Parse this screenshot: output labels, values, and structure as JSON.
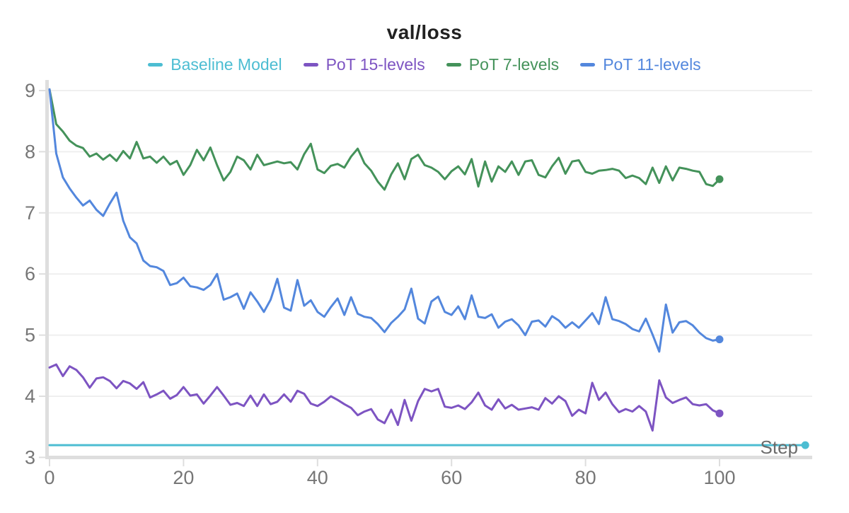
{
  "title": "val/loss",
  "legend": [
    {
      "label": "Baseline Model",
      "color": "#4cbdd2"
    },
    {
      "label": "PoT 15-levels",
      "color": "#7d54c2"
    },
    {
      "label": "PoT 7-levels",
      "color": "#44925a"
    },
    {
      "label": "PoT 11-levels",
      "color": "#5387dd"
    }
  ],
  "x_axis": {
    "label": "Step",
    "tick_labels": [
      "0",
      "20",
      "40",
      "60",
      "80",
      "100"
    ],
    "ticks": [
      0,
      20,
      40,
      60,
      80,
      100
    ]
  },
  "y_axis": {
    "tick_labels": [
      "3",
      "4",
      "5",
      "6",
      "7",
      "8",
      "9"
    ],
    "ticks": [
      3,
      4,
      5,
      6,
      7,
      8,
      9
    ]
  },
  "colors": {
    "tick_label": "#767676",
    "axis_band": "#dedede",
    "gridline": "#efefef",
    "step_label": "#6b6b6b",
    "title": "#212121"
  },
  "chart_data": {
    "type": "line",
    "title": "val/loss",
    "xlabel": "Step",
    "ylabel": "",
    "xlim": [
      0,
      113.5
    ],
    "ylim": [
      3,
      9.17
    ],
    "grid": "horizontal-only",
    "legend_position": "top-center",
    "series": [
      {
        "name": "Baseline Model",
        "color": "#4cbdd2",
        "end_dot": true,
        "x": [
          0,
          112.8
        ],
        "values": [
          3.2,
          3.2
        ]
      },
      {
        "name": "PoT 7-levels",
        "color": "#44925a",
        "end_dot": true,
        "x_start": 0,
        "x_step": 1,
        "values": [
          9.02,
          8.45,
          8.33,
          8.18,
          8.1,
          8.06,
          7.92,
          7.97,
          7.87,
          7.95,
          7.85,
          8.01,
          7.89,
          8.16,
          7.89,
          7.92,
          7.82,
          7.92,
          7.79,
          7.85,
          7.62,
          7.78,
          8.03,
          7.86,
          8.07,
          7.78,
          7.53,
          7.67,
          7.92,
          7.86,
          7.71,
          7.95,
          7.78,
          7.81,
          7.84,
          7.81,
          7.83,
          7.71,
          7.96,
          8.13,
          7.71,
          7.65,
          7.77,
          7.8,
          7.74,
          7.92,
          8.05,
          7.81,
          7.69,
          7.51,
          7.38,
          7.63,
          7.81,
          7.55,
          7.88,
          7.95,
          7.78,
          7.74,
          7.67,
          7.55,
          7.68,
          7.76,
          7.63,
          7.88,
          7.43,
          7.84,
          7.51,
          7.76,
          7.67,
          7.84,
          7.62,
          7.84,
          7.86,
          7.62,
          7.58,
          7.76,
          7.9,
          7.64,
          7.84,
          7.86,
          7.67,
          7.64,
          7.69,
          7.7,
          7.72,
          7.69,
          7.57,
          7.61,
          7.57,
          7.47,
          7.74,
          7.49,
          7.76,
          7.53,
          7.74,
          7.72,
          7.69,
          7.67,
          7.47,
          7.44,
          7.55
        ]
      },
      {
        "name": "PoT 11-levels",
        "color": "#5387dd",
        "end_dot": true,
        "x_start": 0,
        "x_step": 1,
        "values": [
          9.02,
          7.97,
          7.58,
          7.4,
          7.25,
          7.12,
          7.2,
          7.05,
          6.95,
          7.15,
          7.33,
          6.87,
          6.6,
          6.5,
          6.22,
          6.13,
          6.11,
          6.05,
          5.82,
          5.85,
          5.94,
          5.8,
          5.78,
          5.74,
          5.82,
          6.0,
          5.58,
          5.62,
          5.68,
          5.43,
          5.7,
          5.55,
          5.38,
          5.58,
          5.92,
          5.45,
          5.4,
          5.9,
          5.48,
          5.57,
          5.38,
          5.3,
          5.46,
          5.6,
          5.33,
          5.62,
          5.35,
          5.3,
          5.28,
          5.18,
          5.05,
          5.2,
          5.3,
          5.42,
          5.76,
          5.27,
          5.19,
          5.55,
          5.63,
          5.38,
          5.33,
          5.47,
          5.26,
          5.65,
          5.3,
          5.28,
          5.34,
          5.12,
          5.22,
          5.26,
          5.16,
          5.0,
          5.22,
          5.24,
          5.14,
          5.31,
          5.24,
          5.12,
          5.21,
          5.12,
          5.24,
          5.36,
          5.18,
          5.62,
          5.26,
          5.23,
          5.18,
          5.1,
          5.06,
          5.27,
          5.01,
          4.73,
          5.5,
          5.04,
          5.21,
          5.23,
          5.16,
          5.04,
          4.95,
          4.91,
          4.93
        ]
      },
      {
        "name": "PoT 15-levels",
        "color": "#7d54c2",
        "end_dot": true,
        "x_start": 0,
        "x_step": 1,
        "values": [
          4.47,
          4.52,
          4.33,
          4.49,
          4.43,
          4.31,
          4.14,
          4.29,
          4.31,
          4.25,
          4.13,
          4.25,
          4.21,
          4.12,
          4.23,
          3.98,
          4.03,
          4.09,
          3.96,
          4.02,
          4.15,
          4.01,
          4.03,
          3.88,
          4.01,
          4.15,
          4.01,
          3.86,
          3.89,
          3.84,
          4.01,
          3.84,
          4.03,
          3.87,
          3.91,
          4.03,
          3.91,
          4.09,
          4.04,
          3.88,
          3.84,
          3.91,
          4.0,
          3.94,
          3.87,
          3.81,
          3.69,
          3.75,
          3.79,
          3.62,
          3.56,
          3.78,
          3.53,
          3.94,
          3.6,
          3.92,
          4.12,
          4.08,
          4.12,
          3.83,
          3.81,
          3.85,
          3.79,
          3.9,
          4.06,
          3.85,
          3.78,
          3.95,
          3.8,
          3.86,
          3.78,
          3.8,
          3.82,
          3.78,
          3.97,
          3.88,
          4.0,
          3.92,
          3.68,
          3.78,
          3.72,
          4.22,
          3.94,
          4.06,
          3.87,
          3.74,
          3.79,
          3.75,
          3.84,
          3.75,
          3.44,
          4.26,
          3.98,
          3.89,
          3.94,
          3.98,
          3.87,
          3.85,
          3.87,
          3.77,
          3.72
        ]
      }
    ]
  }
}
